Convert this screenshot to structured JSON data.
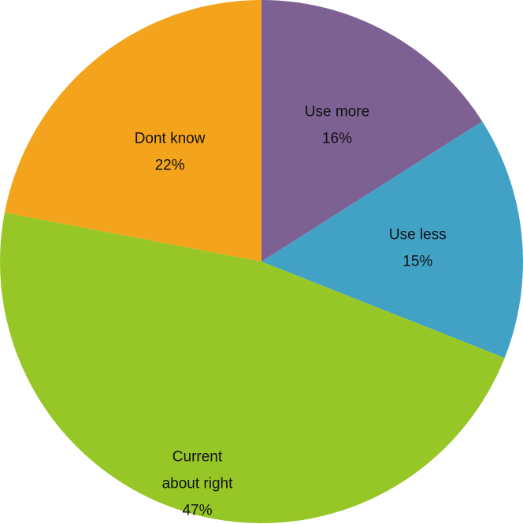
{
  "chart_data": {
    "type": "pie",
    "title": "",
    "slices": [
      {
        "label_lines": [
          "Use more"
        ],
        "value_label": "16%",
        "value": 16,
        "color": "#7E6193"
      },
      {
        "label_lines": [
          "Use less"
        ],
        "value_label": "15%",
        "value": 15,
        "color": "#42A2C6"
      },
      {
        "label_lines": [
          "Current",
          "about right"
        ],
        "value_label": "47%",
        "value": 47,
        "color": "#96C726"
      },
      {
        "label_lines": [
          "Dont know"
        ],
        "value_label": "22%",
        "value": 22,
        "color": "#F4A41C"
      }
    ],
    "start_angle": "12 o'clock",
    "direction": "clockwise",
    "legend": "none"
  }
}
